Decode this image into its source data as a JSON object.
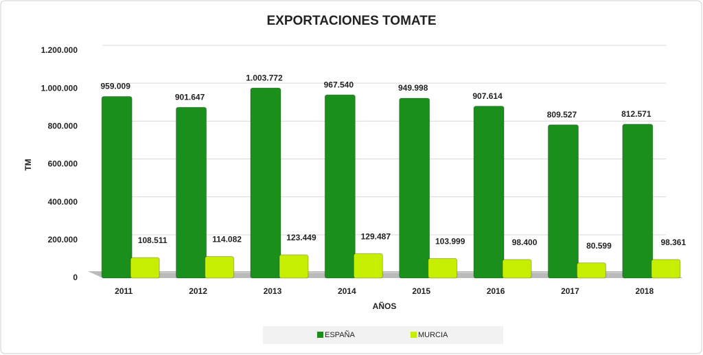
{
  "chart_data": {
    "type": "bar",
    "title": "EXPORTACIONES TOMATE",
    "x_label": "AÑOS",
    "y_label": "TM",
    "categories": [
      "2011",
      "2012",
      "2013",
      "2014",
      "2015",
      "2016",
      "2017",
      "2018"
    ],
    "series": [
      {
        "name": "ESPAÑA",
        "color": "#1b8f1b",
        "values": [
          959009,
          901647,
          1003772,
          967540,
          949998,
          907614,
          809527,
          812571
        ],
        "value_labels": [
          "959.009",
          "901.647",
          "1.003.772",
          "967.540",
          "949.998",
          "907.614",
          "809.527",
          "812.571"
        ]
      },
      {
        "name": "MURCIA",
        "color": "#c6ee00",
        "values": [
          108511,
          114082,
          123449,
          129487,
          103999,
          98400,
          80599,
          98361
        ],
        "value_labels": [
          "108.511",
          "114.082",
          "123.449",
          "129.487",
          "103.999",
          "98.400",
          "80.599",
          "98.361"
        ]
      }
    ],
    "ylim": [
      0,
      1200000
    ],
    "yticks": [
      0,
      {
        "value": 200000,
        "label": "200.000"
      },
      {
        "value": 400000,
        "label": "400.000"
      },
      {
        "value": 600000,
        "label": "600.000"
      },
      {
        "value": 800000,
        "label": "800.000"
      },
      {
        "value": 1000000,
        "label": "1.000.000"
      },
      {
        "value": 1200000,
        "label": "1.200.000"
      }
    ],
    "grid": true,
    "legend": "bottom"
  }
}
